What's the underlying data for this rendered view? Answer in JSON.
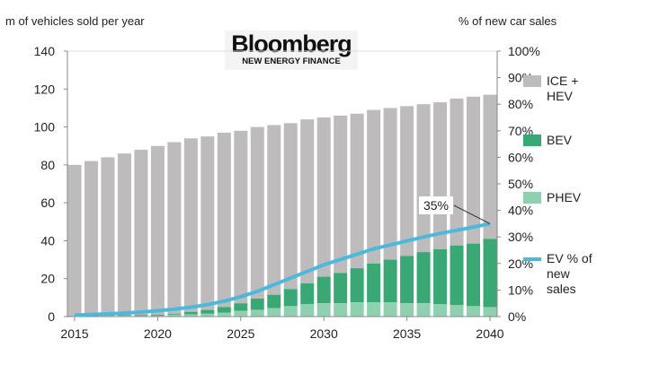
{
  "chart_data": {
    "type": "bar",
    "ylabel_left": "m of vehicles sold per year",
    "ylabel_right": "% of new car sales",
    "ylim_left": [
      0,
      140
    ],
    "ylim_right": [
      0,
      100
    ],
    "left_ticks": [
      "0",
      "20",
      "40",
      "60",
      "80",
      "100",
      "120",
      "140"
    ],
    "right_ticks": [
      "0%",
      "10%",
      "20%",
      "30%",
      "40%",
      "50%",
      "60%",
      "70%",
      "80%",
      "90%",
      "100%"
    ],
    "x_ticks": [
      "2015",
      "2020",
      "2025",
      "2030",
      "2035",
      "2040"
    ],
    "categories": [
      2015,
      2016,
      2017,
      2018,
      2019,
      2020,
      2021,
      2022,
      2023,
      2024,
      2025,
      2026,
      2027,
      2028,
      2029,
      2030,
      2031,
      2032,
      2033,
      2034,
      2035,
      2036,
      2037,
      2038,
      2039,
      2040
    ],
    "total": [
      80,
      82,
      84,
      86,
      88,
      90,
      92,
      94,
      95,
      97,
      98,
      100,
      101,
      102,
      104,
      105,
      106,
      107,
      109,
      110,
      111,
      112,
      113,
      115,
      116,
      117
    ],
    "series": [
      {
        "name": "PHEV",
        "color": "#8fd0b0",
        "values": [
          0.2,
          0.3,
          0.4,
          0.4,
          0.5,
          0.5,
          1,
          1.2,
          1.5,
          2,
          3,
          3.5,
          4.5,
          5.5,
          6.5,
          7,
          7,
          7.5,
          7.5,
          7.5,
          7,
          7,
          6.5,
          6,
          5.5,
          5
        ]
      },
      {
        "name": "BEV",
        "color": "#3aa874",
        "values": [
          0.1,
          0.2,
          0.3,
          0.3,
          0.4,
          0.5,
          0.5,
          1.3,
          2,
          3,
          4,
          6,
          7,
          9,
          11,
          14,
          16,
          18,
          20.5,
          22.5,
          25,
          27,
          29,
          31.5,
          33,
          36
        ]
      },
      {
        "name": "ICE + HEV",
        "color": "#bdbbbb",
        "values": "total minus PHEV and BEV"
      }
    ],
    "line": {
      "name": "EV % of new sales",
      "color": "#4bb8dc",
      "axis": "right",
      "values": [
        0.5,
        0.8,
        1,
        1.3,
        1.7,
        2.2,
        2.8,
        3.5,
        4.5,
        5.8,
        7.5,
        9.5,
        12,
        14.5,
        17,
        19.5,
        21.5,
        23.5,
        25.5,
        27,
        28.5,
        30,
        31.3,
        32.5,
        33.7,
        35
      ]
    },
    "annotation": "35%",
    "legend_position": "right"
  },
  "legend": {
    "ice": "ICE +",
    "ice2": "HEV",
    "bev": "BEV",
    "phev": "PHEV",
    "ev1": "EV % of",
    "ev2": "new",
    "ev3": "sales"
  },
  "logo": {
    "brand": "Bloomberg",
    "sub": "NEW ENERGY FINANCE"
  }
}
